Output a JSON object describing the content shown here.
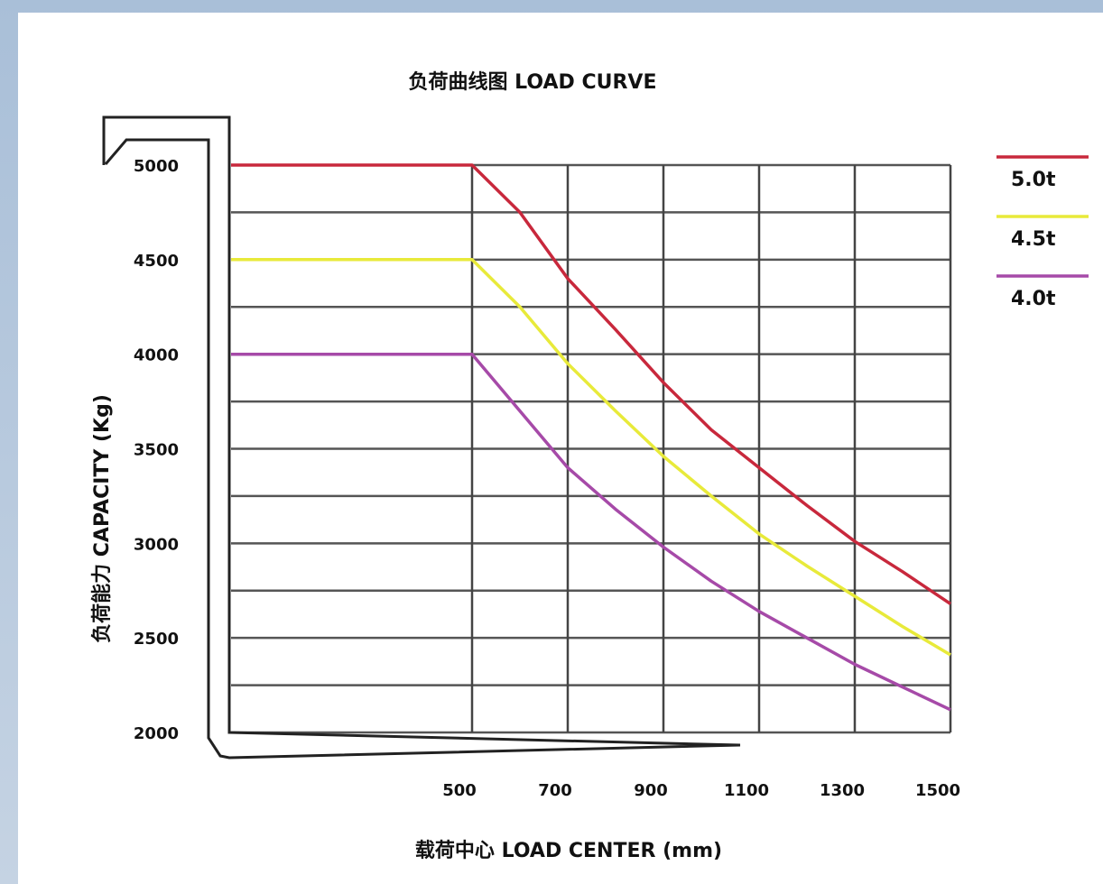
{
  "chart_data": {
    "type": "line",
    "title": "负荷曲线图 LOAD CURVE",
    "xlabel": "载荷中心 LOAD CENTER (mm)",
    "ylabel": "负荷能力 CAPACITY (Kg)",
    "x_ticks": [
      "500",
      "700",
      "900",
      "1100",
      "1300",
      "1500"
    ],
    "y_ticks": [
      "5000",
      "4500",
      "4000",
      "3500",
      "3000",
      "2500",
      "2000"
    ],
    "xlim": [
      0,
      1500
    ],
    "ylim": [
      2000,
      5000
    ],
    "grid": true,
    "legend_position": "right",
    "series": [
      {
        "name": "5.0t",
        "color": "#c8283c",
        "points": [
          [
            0,
            5000
          ],
          [
            500,
            5000
          ],
          [
            600,
            4750
          ],
          [
            700,
            4400
          ],
          [
            800,
            4130
          ],
          [
            900,
            3850
          ],
          [
            1000,
            3600
          ],
          [
            1100,
            3400
          ],
          [
            1200,
            3200
          ],
          [
            1300,
            3010
          ],
          [
            1400,
            2850
          ],
          [
            1500,
            2680
          ]
        ]
      },
      {
        "name": "4.5t",
        "color": "#e8ea3a",
        "points": [
          [
            0,
            4500
          ],
          [
            500,
            4500
          ],
          [
            600,
            4250
          ],
          [
            700,
            3950
          ],
          [
            800,
            3700
          ],
          [
            900,
            3460
          ],
          [
            1000,
            3250
          ],
          [
            1100,
            3050
          ],
          [
            1200,
            2880
          ],
          [
            1300,
            2720
          ],
          [
            1400,
            2560
          ],
          [
            1500,
            2410
          ]
        ]
      },
      {
        "name": "4.0t",
        "color": "#a64aa8",
        "points": [
          [
            0,
            4000
          ],
          [
            500,
            4000
          ],
          [
            600,
            3700
          ],
          [
            700,
            3400
          ],
          [
            800,
            3180
          ],
          [
            900,
            2980
          ],
          [
            1000,
            2800
          ],
          [
            1100,
            2640
          ],
          [
            1200,
            2500
          ],
          [
            1300,
            2360
          ],
          [
            1400,
            2240
          ],
          [
            1500,
            2120
          ]
        ]
      }
    ]
  }
}
